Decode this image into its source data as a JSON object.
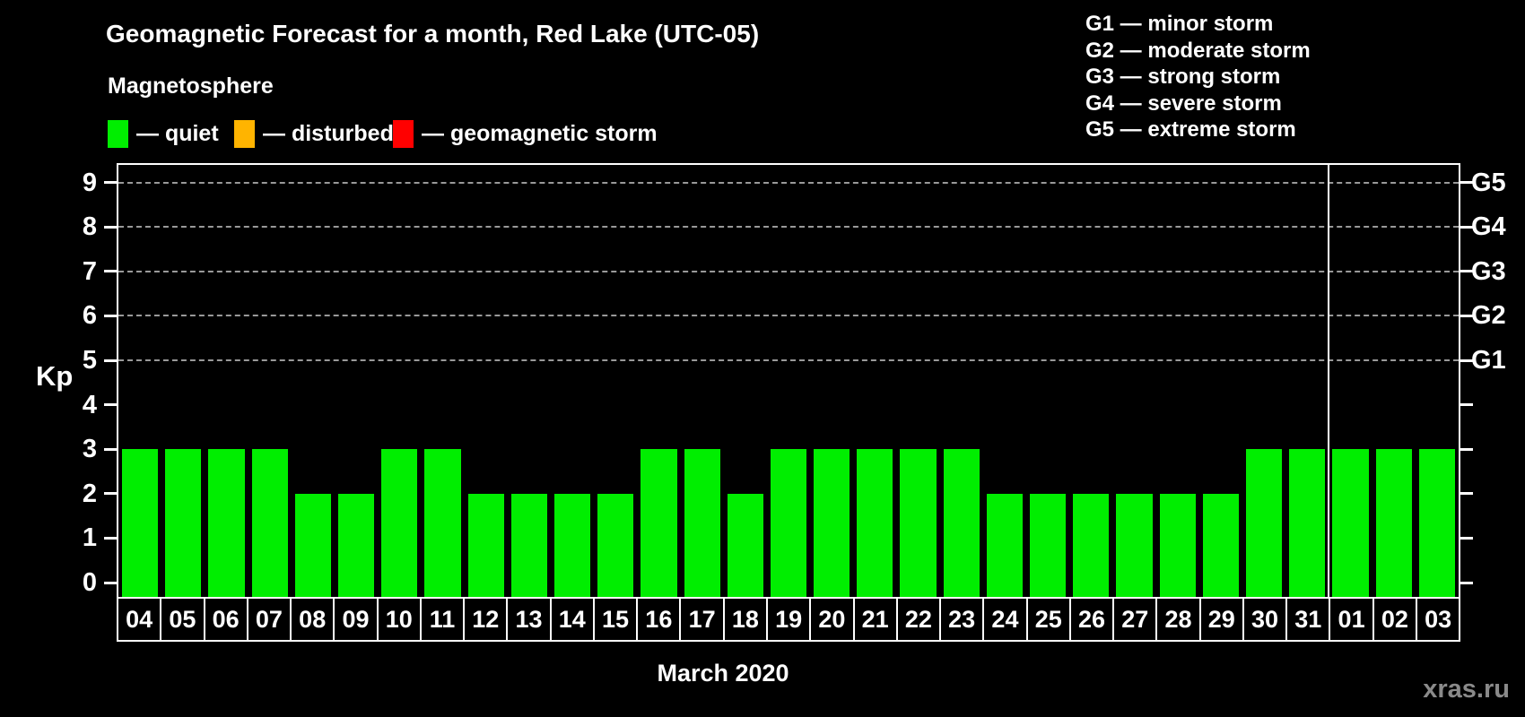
{
  "title": "Geomagnetic Forecast for a month, Red Lake (UTC-05)",
  "subtitle": "Magnetosphere",
  "legend": {
    "items": [
      {
        "label": "— quiet",
        "color": "#00ee00"
      },
      {
        "label": "— disturbed",
        "color": "#ffb400"
      },
      {
        "label": "— geomagnetic storm",
        "color": "#ff0000"
      }
    ]
  },
  "g_legend": [
    "G1 — minor storm",
    "G2 — moderate storm",
    "G3 — strong storm",
    "G4 — severe storm",
    "G5 — extreme storm"
  ],
  "x_caption": "March 2020",
  "watermark": "xras.ru",
  "chart_data": {
    "type": "bar",
    "title": "Geomagnetic Forecast for a month, Red Lake (UTC-05)",
    "xlabel": "March 2020",
    "ylabel": "Kp",
    "ylim": [
      0,
      9
    ],
    "y_ticks": [
      0,
      1,
      2,
      3,
      4,
      5,
      6,
      7,
      8,
      9
    ],
    "gridline_levels": [
      5,
      6,
      7,
      8,
      9
    ],
    "right_labels": [
      {
        "label": "G1",
        "kp": 5
      },
      {
        "label": "G2",
        "kp": 6
      },
      {
        "label": "G3",
        "kp": 7
      },
      {
        "label": "G4",
        "kp": 8
      },
      {
        "label": "G5",
        "kp": 9
      }
    ],
    "grid": "dashed-horizontal-on-storm-levels",
    "legend_position": "top",
    "bar_color": "#00ee00",
    "bar_color_meaning": "quiet",
    "month_divider_after": "31",
    "categories": [
      "04",
      "05",
      "06",
      "07",
      "08",
      "09",
      "10",
      "11",
      "12",
      "13",
      "14",
      "15",
      "16",
      "17",
      "18",
      "19",
      "20",
      "21",
      "22",
      "23",
      "24",
      "25",
      "26",
      "27",
      "28",
      "29",
      "30",
      "31",
      "01",
      "02",
      "03"
    ],
    "values": [
      3,
      3,
      3,
      3,
      2,
      2,
      3,
      3,
      2,
      2,
      2,
      2,
      3,
      3,
      2,
      3,
      3,
      3,
      3,
      3,
      2,
      2,
      2,
      2,
      2,
      2,
      3,
      3,
      3,
      3,
      3
    ]
  }
}
